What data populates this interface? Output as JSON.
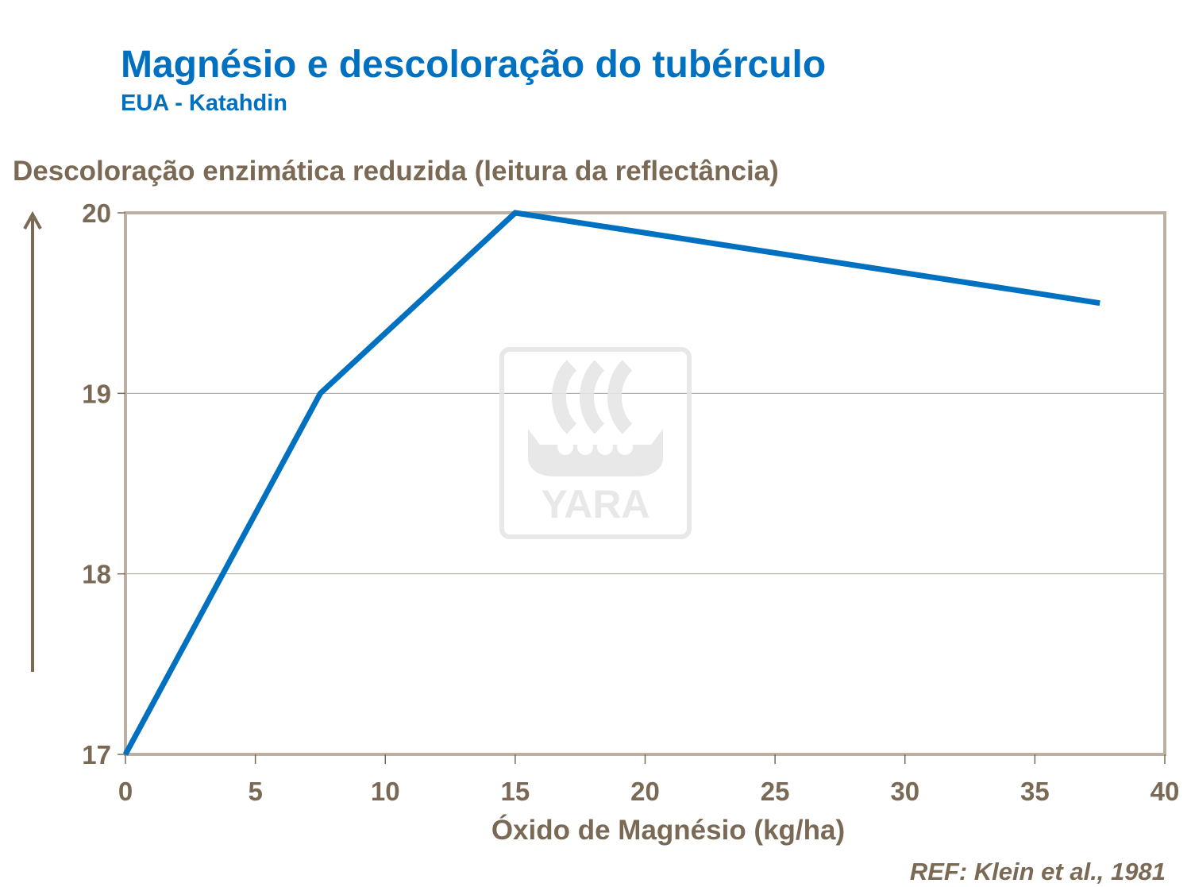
{
  "chart_data": {
    "type": "line",
    "title": "Magnésio e descoloração do tubérculo",
    "subtitle": "EUA - Katahdin",
    "ylabel": "Descoloração enzimática reduzida (leitura da reflectância)",
    "xlabel": "Óxido de Magnésio (kg/ha)",
    "xlim": [
      0,
      40
    ],
    "ylim": [
      17,
      20
    ],
    "x_ticks": [
      0,
      5,
      10,
      15,
      20,
      25,
      30,
      35,
      40
    ],
    "y_ticks": [
      17,
      18,
      19,
      20
    ],
    "grid": "horizontal",
    "series": [
      {
        "x": [
          0,
          7.5,
          15,
          37.5
        ],
        "y": [
          17,
          19,
          20,
          19.5
        ],
        "color": "#0070c0"
      }
    ],
    "reference": "REF: Klein et al., 1981",
    "watermark": "YARA"
  },
  "colors": {
    "accent": "#0070c0",
    "text": "#7a6a55",
    "frame": "#bcb0a3"
  }
}
